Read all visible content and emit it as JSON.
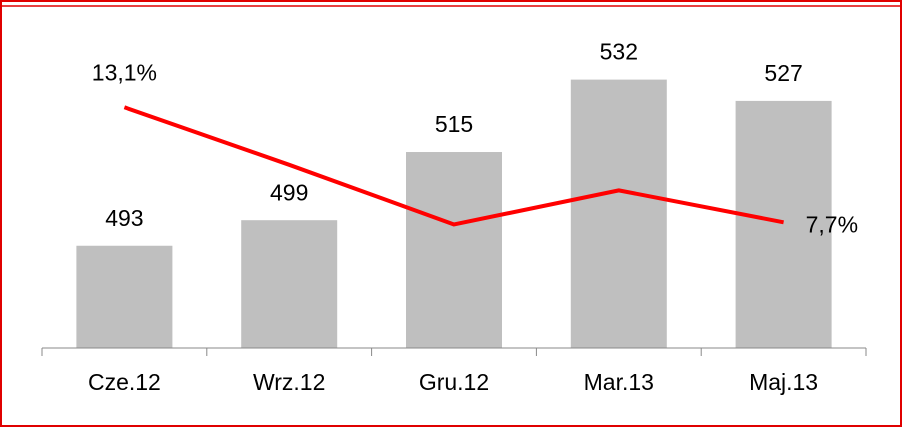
{
  "chart_data": {
    "type": "bar",
    "categories": [
      "Cze.12",
      "Wrz.12",
      "Gru.12",
      "Mar.13",
      "Maj.13"
    ],
    "series": [
      {
        "type": "bar",
        "color": "#bfbfbf",
        "values": [
          493,
          499,
          515,
          532,
          527
        ]
      },
      {
        "type": "line",
        "axis": "y2",
        "color": "#ff0000",
        "values": [
          13.1,
          10.4,
          7.6,
          9.2,
          7.7
        ],
        "value_labels": [
          "13,1%",
          null,
          null,
          null,
          "7,7%"
        ]
      }
    ],
    "ylim": [
      469,
      542
    ],
    "y2lim": [
      1.8,
      16.4
    ]
  }
}
